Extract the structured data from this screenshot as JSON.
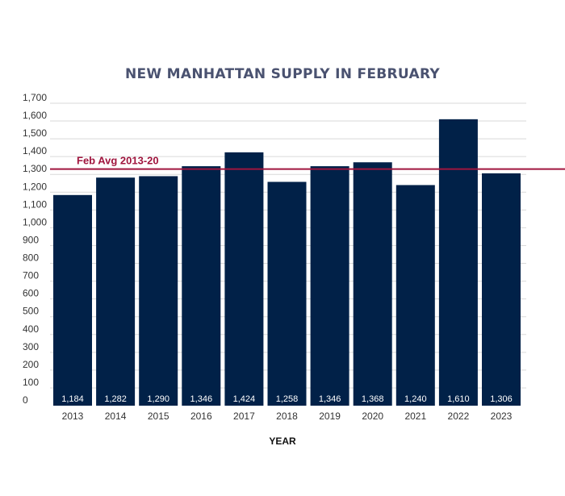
{
  "chart_data": {
    "type": "bar",
    "title": "NEW MANHATTAN SUPPLY IN FEBRUARY",
    "xlabel": "YEAR",
    "ylabel": "",
    "categories": [
      "2013",
      "2014",
      "2015",
      "2016",
      "2017",
      "2018",
      "2019",
      "2020",
      "2021",
      "2022",
      "2023"
    ],
    "values": [
      1184,
      1282,
      1290,
      1346,
      1424,
      1258,
      1346,
      1368,
      1240,
      1610,
      1306
    ],
    "value_labels": [
      "1,184",
      "1,282",
      "1,290",
      "1,346",
      "1,424",
      "1,258",
      "1,346",
      "1,368",
      "1,240",
      "1,610",
      "1,306"
    ],
    "ylim": [
      0,
      1700
    ],
    "yticks": [
      0,
      100,
      200,
      300,
      400,
      500,
      600,
      700,
      800,
      900,
      1000,
      1100,
      1200,
      1300,
      1400,
      1500,
      1600,
      1700
    ],
    "ytick_labels": [
      "0",
      "100",
      "200",
      "300",
      "400",
      "500",
      "600",
      "700",
      "800",
      "900",
      "1,000",
      "1,100",
      "1,200",
      "1,300",
      "1,400",
      "1,500",
      "1,600",
      "1,700"
    ],
    "grid": true,
    "reference_line": {
      "label": "Feb Avg 2013-20",
      "value": 1330,
      "color": "#a0153e"
    },
    "colors": {
      "bar": "#012148",
      "grid": "#d9d9d9",
      "title": "#4a5270"
    }
  }
}
